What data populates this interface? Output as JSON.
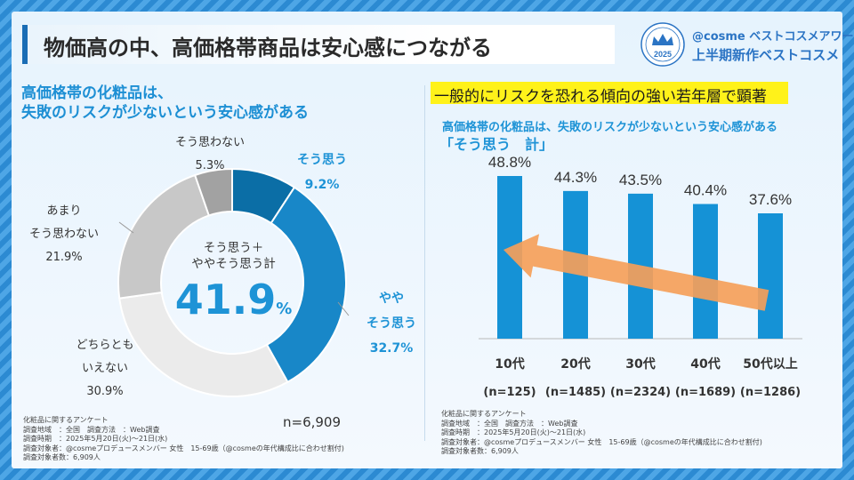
{
  "title": "物価高の中、高価格帯商品は安心感につながる",
  "award": {
    "brand": "@cosme ベストコスメアワード",
    "name": "上半期新作ベストコスメ",
    "badge_year": "2025"
  },
  "left": {
    "heading_line1": "高価格帯の化粧品は、",
    "heading_line2": "失敗のリスクが少ないという安心感がある",
    "center_label_line1": "そう思う＋",
    "center_label_line2": "ややそう思う計",
    "center_value": "41.9",
    "center_unit": "%",
    "n": "n=6,909",
    "survey": [
      "化粧品に関するアンケート",
      "調査地域　：全国　調査方法　：Web調査",
      "調査時期　：2025年5月20日(火)～21日(水)",
      "調査対象者：@cosmeプロデュースメンバー 女性　15-69歳（@cosmeの年代構成比に合わせ割付)",
      "調査対象者数：6,909人"
    ]
  },
  "right": {
    "highlight": "一般的にリスクを恐れる傾向の強い若年層で顕著",
    "sub1": "高価格帯の化粧品は、失敗のリスクが少ないという安心感がある",
    "sub2": "「そう思う　計」",
    "survey": [
      "化粧品に関するアンケート",
      "調査地域　：全国　調査方法　：Web調査",
      "調査時期　：2025年5月20日(火)～21日(水)",
      "調査対象者：@cosmeプロデュースメンバー 女性　15-69歳（@cosmeの年代構成比に合わせ割付)",
      "調査対象者数：6,909人"
    ]
  },
  "chart_data": [
    {
      "type": "pie",
      "title": "高価格帯の化粧品は、失敗のリスクが少ないという安心感がある",
      "categories": [
        "そう思う",
        "ややそう思う",
        "どちらともいえない",
        "あまりそう思わない",
        "そう思わない"
      ],
      "values": [
        9.2,
        32.7,
        30.9,
        21.9,
        5.3
      ],
      "labels": [
        {
          "line1": "そう思う",
          "line2": "",
          "value": "9.2%"
        },
        {
          "line1": "やや",
          "line2": "そう思う",
          "value": "32.7%"
        },
        {
          "line1": "どちらとも",
          "line2": "いえない",
          "value": "30.9%"
        },
        {
          "line1": "あまり",
          "line2": "そう思わない",
          "value": "21.9%"
        },
        {
          "line1": "そう思わない",
          "line2": "",
          "value": "5.3%"
        }
      ],
      "colors": [
        "#0b6ea6",
        "#1887c8",
        "#ebebeb",
        "#c8c8c8",
        "#a2a2a2"
      ]
    },
    {
      "type": "bar",
      "title": "「そう思う　計」",
      "categories": [
        "10代",
        "20代",
        "30代",
        "40代",
        "50代以上"
      ],
      "n_labels": [
        "(n=125)",
        "(n=1485)",
        "(n=2324)",
        "(n=1689)",
        "(n=1286)"
      ],
      "values": [
        48.8,
        44.3,
        43.5,
        40.4,
        37.6
      ],
      "value_labels": [
        "48.8%",
        "44.3%",
        "43.5%",
        "40.4%",
        "37.6%"
      ],
      "ylim": [
        0,
        60
      ],
      "bar_color": "#1592d6",
      "arrow_color": "#f5a05a"
    }
  ]
}
